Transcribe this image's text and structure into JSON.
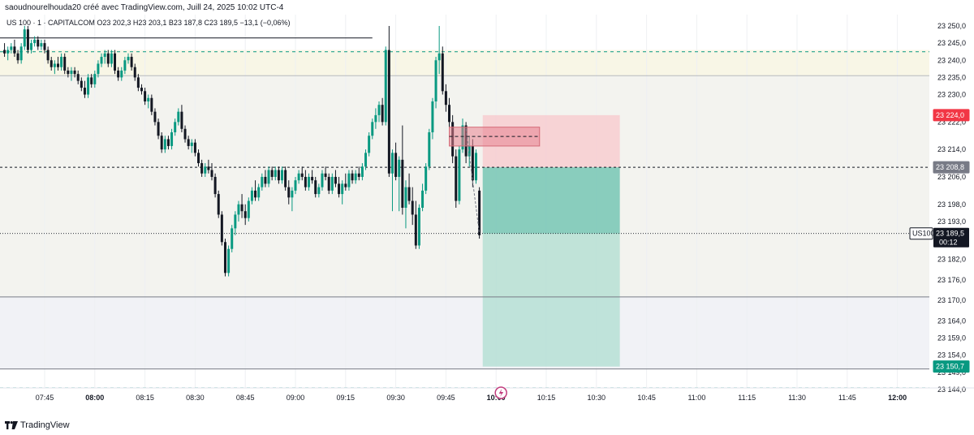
{
  "header": {
    "attribution": "saoudnourelhouda20 créé avec TradingView.com, Juill 24, 2025 10:02 UTC-4"
  },
  "footer": {
    "logo_text": "TradingView"
  },
  "colors": {
    "up": "#089981",
    "down": "#131722",
    "stop_zone": "#f7cdd0",
    "target_zone": "#9fd8c8",
    "accent_red": "#f23645",
    "zone_fill": "#f8f6e6",
    "flag": "#c23d7e"
  },
  "chart_data": {
    "type": "candlestick",
    "symbol_line": "US 100 · 1 · CAPITALCOM  O23 202,3  H23 203,1  B23 187,8  C23 189,5  −13,1 (−0,06%)",
    "x_ticks": [
      "07:45",
      "08:00",
      "08:15",
      "08:30",
      "08:45",
      "09:00",
      "09:15",
      "09:30",
      "09:45",
      "10:00",
      "10:15",
      "10:30",
      "10:45",
      "11:00",
      "11:15",
      "11:30",
      "11:45",
      "12:00"
    ],
    "bold_x_ticks": [
      "08:00",
      "10:00",
      "12:00"
    ],
    "y_ticks": [
      "23 250,0",
      "23 245,0",
      "23 240,0",
      "23 235,0",
      "23 230,0",
      "23 222,0",
      "23 214,0",
      "23 206,0",
      "23 198,0",
      "23 193,0",
      "23 188,0",
      "23 182,0",
      "23 176,0",
      "23 170,0",
      "23 164,0",
      "23 159,0",
      "23 154,0",
      "23 149,0",
      "23 144,0"
    ],
    "y_range": [
      23144,
      23250
    ],
    "price_labels": [
      {
        "text": "23 224,0",
        "price": 23224.0,
        "style": "red"
      },
      {
        "text": "23 208,8",
        "price": 23208.8,
        "style": "gray"
      },
      {
        "text": "23 150,7",
        "price": 23150.7,
        "style": "green"
      }
    ],
    "current": {
      "symbol": "US100",
      "price_text": "23 189,5",
      "countdown": "00:12",
      "price": 23189.5
    },
    "levels": {
      "dashed_green_top": 23242.5,
      "dashed_green_bottom": 23144.5,
      "zone_top": 23243.0,
      "zone_bottom": 23235.5,
      "support_line": 23171.0,
      "lower_line": 23150.0,
      "dotted_entry": 23208.8,
      "old_high_line": 23246.5
    },
    "position": {
      "start_time": "09:56",
      "end_time": "10:37",
      "stop": 23224.0,
      "entry": 23208.8,
      "target": 23150.7
    },
    "candles": [
      {
        "t": "07:33",
        "o": 23243,
        "h": 23245,
        "l": 23241,
        "c": 23242
      },
      {
        "t": "07:34",
        "o": 23242,
        "h": 23244,
        "l": 23240,
        "c": 23243
      },
      {
        "t": "07:35",
        "o": 23243,
        "h": 23245,
        "l": 23242,
        "c": 23244
      },
      {
        "t": "07:36",
        "o": 23244,
        "h": 23246,
        "l": 23241,
        "c": 23242
      },
      {
        "t": "07:37",
        "o": 23242,
        "h": 23243,
        "l": 23239,
        "c": 23240
      },
      {
        "t": "07:38",
        "o": 23240,
        "h": 23245,
        "l": 23239,
        "c": 23244
      },
      {
        "t": "07:39",
        "o": 23244,
        "h": 23250,
        "l": 23243,
        "c": 23249
      },
      {
        "t": "07:40",
        "o": 23249,
        "h": 23250,
        "l": 23242,
        "c": 23243
      },
      {
        "t": "07:41",
        "o": 23243,
        "h": 23246,
        "l": 23242,
        "c": 23245
      },
      {
        "t": "07:42",
        "o": 23245,
        "h": 23247,
        "l": 23244,
        "c": 23246
      },
      {
        "t": "07:43",
        "o": 23246,
        "h": 23247,
        "l": 23243,
        "c": 23244
      },
      {
        "t": "07:44",
        "o": 23244,
        "h": 23246,
        "l": 23243,
        "c": 23245
      },
      {
        "t": "07:45",
        "o": 23245,
        "h": 23246,
        "l": 23242,
        "c": 23243
      },
      {
        "t": "07:46",
        "o": 23243,
        "h": 23244,
        "l": 23239,
        "c": 23240
      },
      {
        "t": "07:47",
        "o": 23240,
        "h": 23241,
        "l": 23237,
        "c": 23238
      },
      {
        "t": "07:48",
        "o": 23238,
        "h": 23240,
        "l": 23236,
        "c": 23239
      },
      {
        "t": "07:49",
        "o": 23239,
        "h": 23241,
        "l": 23237,
        "c": 23238
      },
      {
        "t": "07:50",
        "o": 23238,
        "h": 23242,
        "l": 23237,
        "c": 23241
      },
      {
        "t": "07:51",
        "o": 23241,
        "h": 23242,
        "l": 23236,
        "c": 23237
      },
      {
        "t": "07:52",
        "o": 23237,
        "h": 23238,
        "l": 23235,
        "c": 23236
      },
      {
        "t": "07:53",
        "o": 23236,
        "h": 23238,
        "l": 23234,
        "c": 23237
      },
      {
        "t": "07:54",
        "o": 23237,
        "h": 23238,
        "l": 23235,
        "c": 23236
      },
      {
        "t": "07:55",
        "o": 23236,
        "h": 23237,
        "l": 23233,
        "c": 23234
      },
      {
        "t": "07:56",
        "o": 23234,
        "h": 23235,
        "l": 23231,
        "c": 23232
      },
      {
        "t": "07:57",
        "o": 23232,
        "h": 23234,
        "l": 23229,
        "c": 23230
      },
      {
        "t": "07:58",
        "o": 23230,
        "h": 23236,
        "l": 23229,
        "c": 23235
      },
      {
        "t": "07:59",
        "o": 23235,
        "h": 23236,
        "l": 23232,
        "c": 23233
      },
      {
        "t": "08:00",
        "o": 23233,
        "h": 23237,
        "l": 23232,
        "c": 23236
      },
      {
        "t": "08:01",
        "o": 23236,
        "h": 23240,
        "l": 23235,
        "c": 23239
      },
      {
        "t": "08:02",
        "o": 23239,
        "h": 23242,
        "l": 23238,
        "c": 23241
      },
      {
        "t": "08:03",
        "o": 23241,
        "h": 23243,
        "l": 23239,
        "c": 23242
      },
      {
        "t": "08:04",
        "o": 23242,
        "h": 23243,
        "l": 23238,
        "c": 23239
      },
      {
        "t": "08:05",
        "o": 23239,
        "h": 23243,
        "l": 23238,
        "c": 23242
      },
      {
        "t": "08:06",
        "o": 23242,
        "h": 23243,
        "l": 23236,
        "c": 23237
      },
      {
        "t": "08:07",
        "o": 23237,
        "h": 23238,
        "l": 23234,
        "c": 23235
      },
      {
        "t": "08:08",
        "o": 23235,
        "h": 23238,
        "l": 23234,
        "c": 23237
      },
      {
        "t": "08:09",
        "o": 23237,
        "h": 23241,
        "l": 23236,
        "c": 23240
      },
      {
        "t": "08:10",
        "o": 23240,
        "h": 23242,
        "l": 23239,
        "c": 23241
      },
      {
        "t": "08:11",
        "o": 23241,
        "h": 23242,
        "l": 23237,
        "c": 23238
      },
      {
        "t": "08:12",
        "o": 23238,
        "h": 23239,
        "l": 23234,
        "c": 23235
      },
      {
        "t": "08:13",
        "o": 23235,
        "h": 23236,
        "l": 23231,
        "c": 23232
      },
      {
        "t": "08:14",
        "o": 23232,
        "h": 23233,
        "l": 23230,
        "c": 23231
      },
      {
        "t": "08:15",
        "o": 23231,
        "h": 23232,
        "l": 23227,
        "c": 23228
      },
      {
        "t": "08:16",
        "o": 23228,
        "h": 23230,
        "l": 23226,
        "c": 23229
      },
      {
        "t": "08:17",
        "o": 23229,
        "h": 23230,
        "l": 23224,
        "c": 23225
      },
      {
        "t": "08:18",
        "o": 23225,
        "h": 23226,
        "l": 23221,
        "c": 23222
      },
      {
        "t": "08:19",
        "o": 23222,
        "h": 23223,
        "l": 23217,
        "c": 23218
      },
      {
        "t": "08:20",
        "o": 23218,
        "h": 23219,
        "l": 23213,
        "c": 23214
      },
      {
        "t": "08:21",
        "o": 23214,
        "h": 23218,
        "l": 23213,
        "c": 23217
      },
      {
        "t": "08:22",
        "o": 23217,
        "h": 23218,
        "l": 23214,
        "c": 23215
      },
      {
        "t": "08:23",
        "o": 23215,
        "h": 23220,
        "l": 23214,
        "c": 23219
      },
      {
        "t": "08:24",
        "o": 23219,
        "h": 23223,
        "l": 23218,
        "c": 23222
      },
      {
        "t": "08:25",
        "o": 23222,
        "h": 23226,
        "l": 23221,
        "c": 23225
      },
      {
        "t": "08:26",
        "o": 23225,
        "h": 23227,
        "l": 23219,
        "c": 23220
      },
      {
        "t": "08:27",
        "o": 23220,
        "h": 23221,
        "l": 23216,
        "c": 23217
      },
      {
        "t": "08:28",
        "o": 23217,
        "h": 23218,
        "l": 23214,
        "c": 23215
      },
      {
        "t": "08:29",
        "o": 23215,
        "h": 23217,
        "l": 23213,
        "c": 23216
      },
      {
        "t": "08:30",
        "o": 23216,
        "h": 23217,
        "l": 23212,
        "c": 23213
      },
      {
        "t": "08:31",
        "o": 23213,
        "h": 23214,
        "l": 23209,
        "c": 23210
      },
      {
        "t": "08:32",
        "o": 23210,
        "h": 23211,
        "l": 23206,
        "c": 23207
      },
      {
        "t": "08:33",
        "o": 23207,
        "h": 23210,
        "l": 23206,
        "c": 23209
      },
      {
        "t": "08:34",
        "o": 23209,
        "h": 23211,
        "l": 23207,
        "c": 23208
      },
      {
        "t": "08:35",
        "o": 23208,
        "h": 23210,
        "l": 23205,
        "c": 23206
      },
      {
        "t": "08:36",
        "o": 23206,
        "h": 23207,
        "l": 23200,
        "c": 23201
      },
      {
        "t": "08:37",
        "o": 23201,
        "h": 23202,
        "l": 23194,
        "c": 23195
      },
      {
        "t": "08:38",
        "o": 23195,
        "h": 23196,
        "l": 23186,
        "c": 23187
      },
      {
        "t": "08:39",
        "o": 23187,
        "h": 23188,
        "l": 23177,
        "c": 23178
      },
      {
        "t": "08:40",
        "o": 23178,
        "h": 23186,
        "l": 23177,
        "c": 23185
      },
      {
        "t": "08:41",
        "o": 23185,
        "h": 23192,
        "l": 23184,
        "c": 23191
      },
      {
        "t": "08:42",
        "o": 23191,
        "h": 23196,
        "l": 23189,
        "c": 23195
      },
      {
        "t": "08:43",
        "o": 23195,
        "h": 23199,
        "l": 23193,
        "c": 23198
      },
      {
        "t": "08:44",
        "o": 23198,
        "h": 23201,
        "l": 23194,
        "c": 23196
      },
      {
        "t": "08:45",
        "o": 23196,
        "h": 23198,
        "l": 23192,
        "c": 23194
      },
      {
        "t": "08:46",
        "o": 23194,
        "h": 23200,
        "l": 23193,
        "c": 23199
      },
      {
        "t": "08:47",
        "o": 23199,
        "h": 23203,
        "l": 23198,
        "c": 23202
      },
      {
        "t": "08:48",
        "o": 23202,
        "h": 23205,
        "l": 23199,
        "c": 23200
      },
      {
        "t": "08:49",
        "o": 23200,
        "h": 23204,
        "l": 23199,
        "c": 23203
      },
      {
        "t": "08:50",
        "o": 23203,
        "h": 23207,
        "l": 23202,
        "c": 23206
      },
      {
        "t": "08:51",
        "o": 23206,
        "h": 23208,
        "l": 23203,
        "c": 23204
      },
      {
        "t": "08:52",
        "o": 23204,
        "h": 23209,
        "l": 23203,
        "c": 23208
      },
      {
        "t": "08:53",
        "o": 23208,
        "h": 23209,
        "l": 23205,
        "c": 23206
      },
      {
        "t": "08:54",
        "o": 23206,
        "h": 23209,
        "l": 23205,
        "c": 23208
      },
      {
        "t": "08:55",
        "o": 23208,
        "h": 23209,
        "l": 23204,
        "c": 23205
      },
      {
        "t": "08:56",
        "o": 23205,
        "h": 23209,
        "l": 23204,
        "c": 23208
      },
      {
        "t": "08:57",
        "o": 23208,
        "h": 23209,
        "l": 23202,
        "c": 23203
      },
      {
        "t": "08:58",
        "o": 23203,
        "h": 23205,
        "l": 23198,
        "c": 23200
      },
      {
        "t": "08:59",
        "o": 23200,
        "h": 23203,
        "l": 23196,
        "c": 23202
      },
      {
        "t": "09:00",
        "o": 23202,
        "h": 23206,
        "l": 23201,
        "c": 23205
      },
      {
        "t": "09:01",
        "o": 23205,
        "h": 23208,
        "l": 23204,
        "c": 23207
      },
      {
        "t": "09:02",
        "o": 23207,
        "h": 23209,
        "l": 23205,
        "c": 23206
      },
      {
        "t": "09:03",
        "o": 23206,
        "h": 23208,
        "l": 23202,
        "c": 23203
      },
      {
        "t": "09:04",
        "o": 23203,
        "h": 23207,
        "l": 23202,
        "c": 23206
      },
      {
        "t": "09:05",
        "o": 23206,
        "h": 23208,
        "l": 23204,
        "c": 23205
      },
      {
        "t": "09:06",
        "o": 23205,
        "h": 23206,
        "l": 23200,
        "c": 23201
      },
      {
        "t": "09:07",
        "o": 23201,
        "h": 23204,
        "l": 23200,
        "c": 23203
      },
      {
        "t": "09:08",
        "o": 23203,
        "h": 23208,
        "l": 23202,
        "c": 23207
      },
      {
        "t": "09:09",
        "o": 23207,
        "h": 23209,
        "l": 23205,
        "c": 23206
      },
      {
        "t": "09:10",
        "o": 23206,
        "h": 23207,
        "l": 23201,
        "c": 23202
      },
      {
        "t": "09:11",
        "o": 23202,
        "h": 23207,
        "l": 23201,
        "c": 23206
      },
      {
        "t": "09:12",
        "o": 23206,
        "h": 23208,
        "l": 23203,
        "c": 23204
      },
      {
        "t": "09:13",
        "o": 23204,
        "h": 23206,
        "l": 23200,
        "c": 23201
      },
      {
        "t": "09:14",
        "o": 23201,
        "h": 23205,
        "l": 23198,
        "c": 23204
      },
      {
        "t": "09:15",
        "o": 23204,
        "h": 23207,
        "l": 23202,
        "c": 23203
      },
      {
        "t": "09:16",
        "o": 23203,
        "h": 23208,
        "l": 23202,
        "c": 23207
      },
      {
        "t": "09:17",
        "o": 23207,
        "h": 23208,
        "l": 23204,
        "c": 23205
      },
      {
        "t": "09:18",
        "o": 23205,
        "h": 23208,
        "l": 23204,
        "c": 23207
      },
      {
        "t": "09:19",
        "o": 23207,
        "h": 23209,
        "l": 23205,
        "c": 23206
      },
      {
        "t": "09:20",
        "o": 23206,
        "h": 23210,
        "l": 23205,
        "c": 23209
      },
      {
        "t": "09:21",
        "o": 23209,
        "h": 23214,
        "l": 23208,
        "c": 23213
      },
      {
        "t": "09:22",
        "o": 23213,
        "h": 23219,
        "l": 23212,
        "c": 23218
      },
      {
        "t": "09:23",
        "o": 23218,
        "h": 23223,
        "l": 23217,
        "c": 23222
      },
      {
        "t": "09:24",
        "o": 23222,
        "h": 23226,
        "l": 23220,
        "c": 23224
      },
      {
        "t": "09:25",
        "o": 23224,
        "h": 23228,
        "l": 23222,
        "c": 23227
      },
      {
        "t": "09:26",
        "o": 23227,
        "h": 23229,
        "l": 23221,
        "c": 23222
      },
      {
        "t": "09:27",
        "o": 23222,
        "h": 23244,
        "l": 23221,
        "c": 23243
      },
      {
        "t": "09:28",
        "o": 23243,
        "h": 23250,
        "l": 23206,
        "c": 23207
      },
      {
        "t": "09:29",
        "o": 23207,
        "h": 23214,
        "l": 23196,
        "c": 23213
      },
      {
        "t": "09:30",
        "o": 23213,
        "h": 23216,
        "l": 23205,
        "c": 23206
      },
      {
        "t": "09:31",
        "o": 23206,
        "h": 23212,
        "l": 23196,
        "c": 23211
      },
      {
        "t": "09:32",
        "o": 23211,
        "h": 23221,
        "l": 23195,
        "c": 23197
      },
      {
        "t": "09:33",
        "o": 23197,
        "h": 23205,
        "l": 23191,
        "c": 23203
      },
      {
        "t": "09:34",
        "o": 23203,
        "h": 23207,
        "l": 23198,
        "c": 23199
      },
      {
        "t": "09:35",
        "o": 23199,
        "h": 23203,
        "l": 23192,
        "c": 23195
      },
      {
        "t": "09:36",
        "o": 23195,
        "h": 23199,
        "l": 23185,
        "c": 23186
      },
      {
        "t": "09:37",
        "o": 23186,
        "h": 23198,
        "l": 23185,
        "c": 23197
      },
      {
        "t": "09:38",
        "o": 23197,
        "h": 23204,
        "l": 23196,
        "c": 23202
      },
      {
        "t": "09:39",
        "o": 23202,
        "h": 23210,
        "l": 23201,
        "c": 23209
      },
      {
        "t": "09:40",
        "o": 23209,
        "h": 23220,
        "l": 23208,
        "c": 23219
      },
      {
        "t": "09:41",
        "o": 23219,
        "h": 23229,
        "l": 23217,
        "c": 23228
      },
      {
        "t": "09:42",
        "o": 23228,
        "h": 23241,
        "l": 23226,
        "c": 23240
      },
      {
        "t": "09:43",
        "o": 23240,
        "h": 23250,
        "l": 23236,
        "c": 23242
      },
      {
        "t": "09:44",
        "o": 23242,
        "h": 23244,
        "l": 23230,
        "c": 23231
      },
      {
        "t": "09:45",
        "o": 23231,
        "h": 23233,
        "l": 23225,
        "c": 23227
      },
      {
        "t": "09:46",
        "o": 23227,
        "h": 23229,
        "l": 23220,
        "c": 23222
      },
      {
        "t": "09:47",
        "o": 23222,
        "h": 23224,
        "l": 23210,
        "c": 23212
      },
      {
        "t": "09:48",
        "o": 23212,
        "h": 23214,
        "l": 23197,
        "c": 23199
      },
      {
        "t": "09:49",
        "o": 23199,
        "h": 23215,
        "l": 23198,
        "c": 23214
      },
      {
        "t": "09:50",
        "o": 23214,
        "h": 23223,
        "l": 23213,
        "c": 23221
      },
      {
        "t": "09:51",
        "o": 23221,
        "h": 23222,
        "l": 23210,
        "c": 23212
      },
      {
        "t": "09:52",
        "o": 23212,
        "h": 23218,
        "l": 23209,
        "c": 23215
      },
      {
        "t": "09:53",
        "o": 23215,
        "h": 23217,
        "l": 23203,
        "c": 23205
      },
      {
        "t": "09:54",
        "o": 23205,
        "h": 23214,
        "l": 23204,
        "c": 23213
      },
      {
        "t": "09:55",
        "o": 23202,
        "h": 23203,
        "l": 23188,
        "c": 23189
      }
    ]
  }
}
